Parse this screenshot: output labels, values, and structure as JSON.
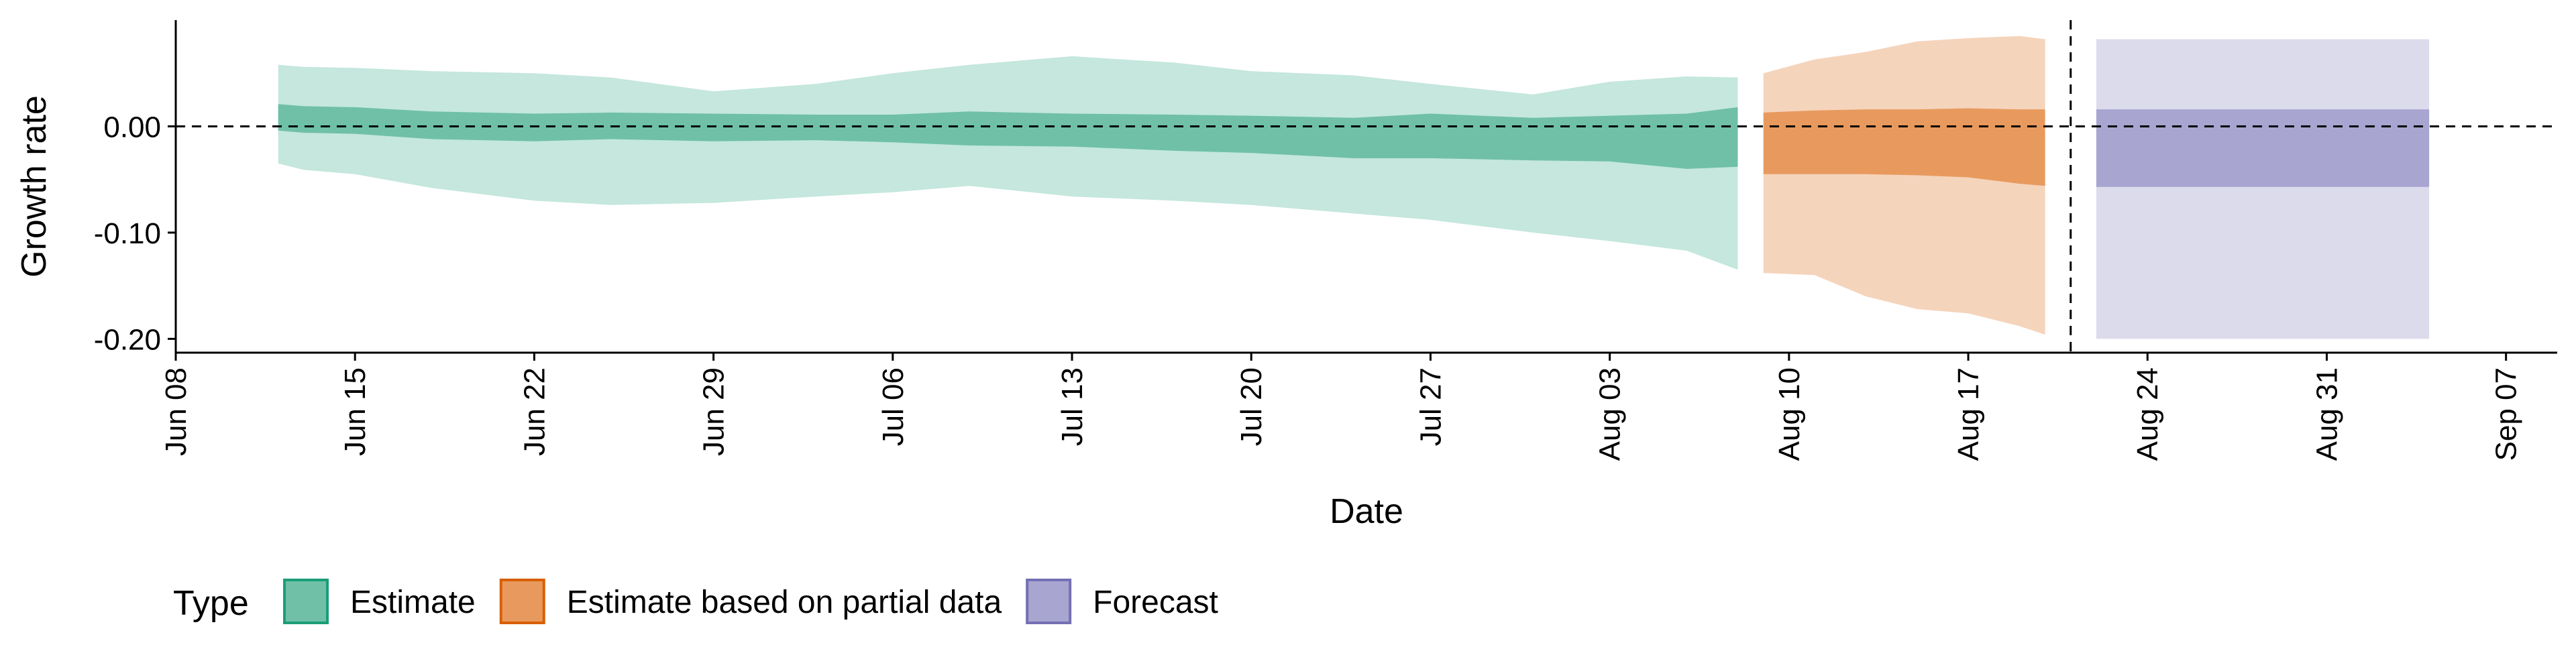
{
  "chart_data": {
    "type": "area",
    "xlabel": "Date",
    "ylabel": "Growth rate",
    "y_ticks": [
      {
        "value": 0.0,
        "label": "0.00"
      },
      {
        "value": -0.1,
        "label": "-0.10"
      },
      {
        "value": -0.2,
        "label": "-0.20"
      }
    ],
    "x_ticks": [
      {
        "value": "2020-06-08",
        "label": "Jun 08"
      },
      {
        "value": "2020-06-15",
        "label": "Jun 15"
      },
      {
        "value": "2020-06-22",
        "label": "Jun 22"
      },
      {
        "value": "2020-06-29",
        "label": "Jun 29"
      },
      {
        "value": "2020-07-06",
        "label": "Jul 06"
      },
      {
        "value": "2020-07-13",
        "label": "Jul 13"
      },
      {
        "value": "2020-07-20",
        "label": "Jul 20"
      },
      {
        "value": "2020-07-27",
        "label": "Jul 27"
      },
      {
        "value": "2020-08-03",
        "label": "Aug 03"
      },
      {
        "value": "2020-08-10",
        "label": "Aug 10"
      },
      {
        "value": "2020-08-17",
        "label": "Aug 17"
      },
      {
        "value": "2020-08-24",
        "label": "Aug 24"
      },
      {
        "value": "2020-08-31",
        "label": "Aug 31"
      },
      {
        "value": "2020-09-07",
        "label": "Sep 07"
      }
    ],
    "xlim": [
      "2020-06-08",
      "2020-09-09"
    ],
    "ylim": [
      -0.213,
      0.1
    ],
    "reference_lines": {
      "horizontal_y": 0.0,
      "vertical_x": "2020-08-21",
      "style": "dashed"
    },
    "grid": false,
    "legend": {
      "title": "Type",
      "position": "bottom-left"
    },
    "series": [
      {
        "name": "Estimate",
        "color": "#1b9e77",
        "fill": "#6fc0a7",
        "fill_light": "#c5e7dd",
        "points": [
          {
            "x": "2020-06-12",
            "lo90": -0.035,
            "lo50": -0.004,
            "hi50": 0.021,
            "hi90": 0.058
          },
          {
            "x": "2020-06-13",
            "lo90": -0.041,
            "lo50": -0.006,
            "hi50": 0.019,
            "hi90": 0.056
          },
          {
            "x": "2020-06-15",
            "lo90": -0.045,
            "lo50": -0.007,
            "hi50": 0.018,
            "hi90": 0.055
          },
          {
            "x": "2020-06-18",
            "lo90": -0.058,
            "lo50": -0.012,
            "hi50": 0.014,
            "hi90": 0.052
          },
          {
            "x": "2020-06-22",
            "lo90": -0.07,
            "lo50": -0.014,
            "hi50": 0.012,
            "hi90": 0.05
          },
          {
            "x": "2020-06-25",
            "lo90": -0.074,
            "lo50": -0.012,
            "hi50": 0.013,
            "hi90": 0.046
          },
          {
            "x": "2020-06-29",
            "lo90": -0.072,
            "lo50": -0.014,
            "hi50": 0.012,
            "hi90": 0.033
          },
          {
            "x": "2020-07-03",
            "lo90": -0.066,
            "lo50": -0.013,
            "hi50": 0.011,
            "hi90": 0.04
          },
          {
            "x": "2020-07-06",
            "lo90": -0.062,
            "lo50": -0.015,
            "hi50": 0.011,
            "hi90": 0.05
          },
          {
            "x": "2020-07-09",
            "lo90": -0.056,
            "lo50": -0.018,
            "hi50": 0.014,
            "hi90": 0.058
          },
          {
            "x": "2020-07-13",
            "lo90": -0.066,
            "lo50": -0.019,
            "hi50": 0.012,
            "hi90": 0.066
          },
          {
            "x": "2020-07-17",
            "lo90": -0.07,
            "lo50": -0.023,
            "hi50": 0.011,
            "hi90": 0.06
          },
          {
            "x": "2020-07-20",
            "lo90": -0.074,
            "lo50": -0.025,
            "hi50": 0.01,
            "hi90": 0.052
          },
          {
            "x": "2020-07-24",
            "lo90": -0.082,
            "lo50": -0.03,
            "hi50": 0.008,
            "hi90": 0.048
          },
          {
            "x": "2020-07-27",
            "lo90": -0.088,
            "lo50": -0.03,
            "hi50": 0.012,
            "hi90": 0.04
          },
          {
            "x": "2020-07-31",
            "lo90": -0.1,
            "lo50": -0.032,
            "hi50": 0.008,
            "hi90": 0.03
          },
          {
            "x": "2020-08-03",
            "lo90": -0.108,
            "lo50": -0.033,
            "hi50": 0.01,
            "hi90": 0.042
          },
          {
            "x": "2020-08-06",
            "lo90": -0.117,
            "lo50": -0.04,
            "hi50": 0.012,
            "hi90": 0.047
          },
          {
            "x": "2020-08-08",
            "lo90": -0.135,
            "lo50": -0.038,
            "hi50": 0.018,
            "hi90": 0.046
          }
        ]
      },
      {
        "name": "Estimate based on partial data",
        "color": "#d95f02",
        "fill": "#e89a5e",
        "fill_light": "#f5d4bc",
        "points": [
          {
            "x": "2020-08-09",
            "lo90": -0.138,
            "lo50": -0.045,
            "hi50": 0.013,
            "hi90": 0.05
          },
          {
            "x": "2020-08-11",
            "lo90": -0.14,
            "lo50": -0.045,
            "hi50": 0.015,
            "hi90": 0.063
          },
          {
            "x": "2020-08-13",
            "lo90": -0.16,
            "lo50": -0.045,
            "hi50": 0.016,
            "hi90": 0.07
          },
          {
            "x": "2020-08-15",
            "lo90": -0.172,
            "lo50": -0.046,
            "hi50": 0.016,
            "hi90": 0.08
          },
          {
            "x": "2020-08-17",
            "lo90": -0.176,
            "lo50": -0.048,
            "hi50": 0.017,
            "hi90": 0.083
          },
          {
            "x": "2020-08-19",
            "lo90": -0.188,
            "lo50": -0.054,
            "hi50": 0.016,
            "hi90": 0.085
          },
          {
            "x": "2020-08-20",
            "lo90": -0.196,
            "lo50": -0.056,
            "hi50": 0.016,
            "hi90": 0.082
          }
        ]
      },
      {
        "name": "Forecast",
        "color": "#7570b3",
        "fill": "#a8a5d1",
        "fill_light": "#dcdbec",
        "points": [
          {
            "x": "2020-08-22",
            "lo90": -0.2,
            "lo50": -0.057,
            "hi50": 0.016,
            "hi90": 0.082
          },
          {
            "x": "2020-09-04",
            "lo90": -0.2,
            "lo50": -0.057,
            "hi50": 0.016,
            "hi90": 0.082
          }
        ]
      }
    ]
  }
}
